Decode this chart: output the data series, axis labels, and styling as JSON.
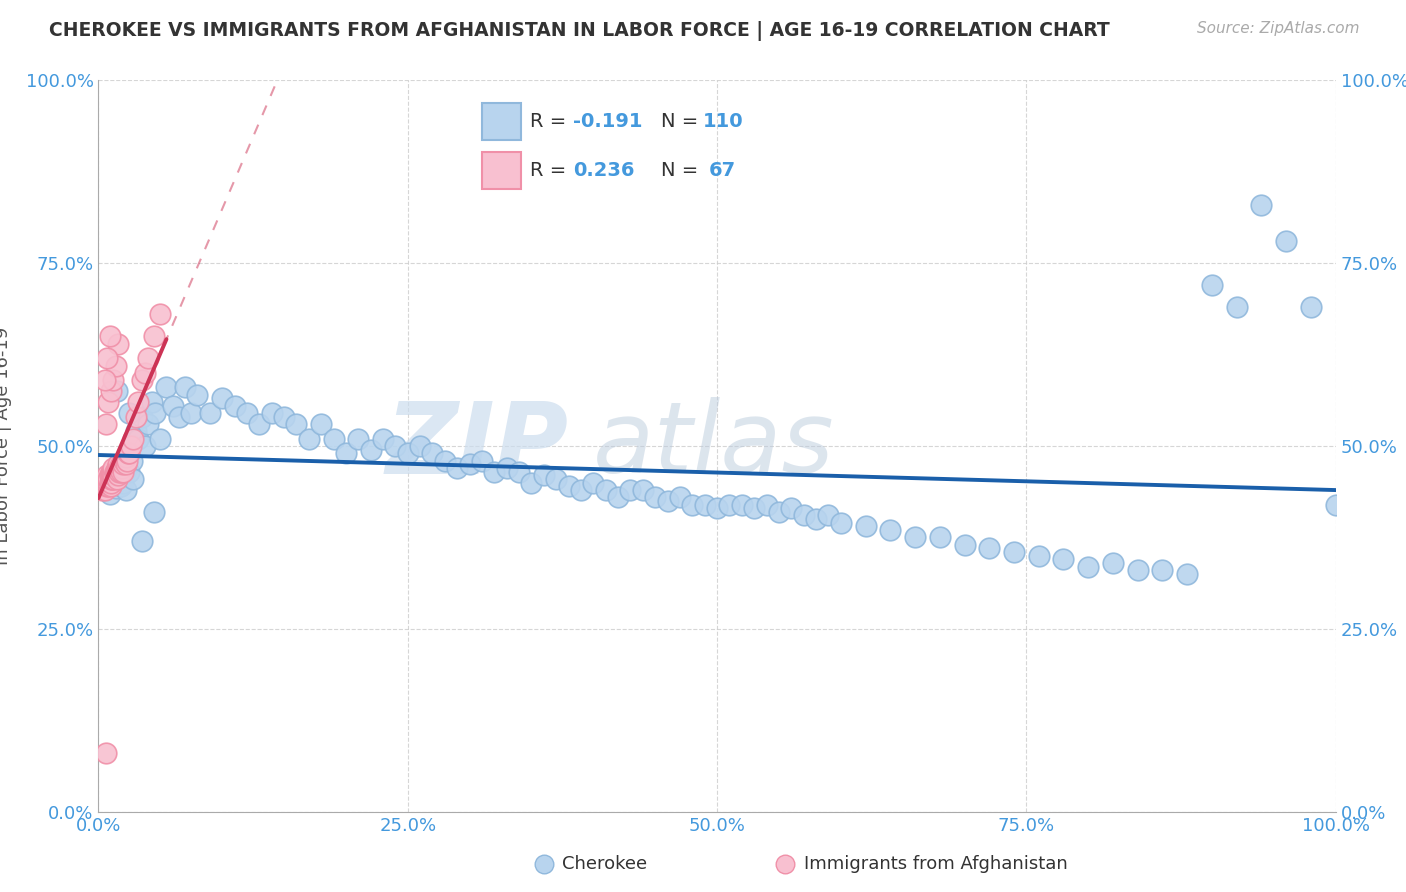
{
  "title": "CHEROKEE VS IMMIGRANTS FROM AFGHANISTAN IN LABOR FORCE | AGE 16-19 CORRELATION CHART",
  "source": "Source: ZipAtlas.com",
  "ylabel": "In Labor Force | Age 16-19",
  "xlim": [
    0,
    1
  ],
  "ylim": [
    0,
    1
  ],
  "xticks": [
    0.0,
    0.25,
    0.5,
    0.75,
    1.0
  ],
  "yticks": [
    0.0,
    0.25,
    0.5,
    0.75,
    1.0
  ],
  "xticklabels": [
    "0.0%",
    "25.0%",
    "50.0%",
    "75.0%",
    "100.0%"
  ],
  "yticklabels": [
    "0.0%",
    "25.0%",
    "50.0%",
    "75.0%",
    "100.0%"
  ],
  "watermark_zip": "ZIP",
  "watermark_atlas": "atlas",
  "group1_label": "Cherokee",
  "group2_label": "Immigrants from Afghanistan",
  "legend_r1": "-0.191",
  "legend_n1": "110",
  "legend_r2": "0.236",
  "legend_n2": "67",
  "group1_color": "#b8d4ee",
  "group1_edge": "#90b8dc",
  "group2_color": "#f8c0d0",
  "group2_edge": "#f090a8",
  "line1_color": "#1a5faa",
  "line2_color": "#cc3355",
  "background_color": "#ffffff",
  "grid_color": "#cccccc",
  "title_color": "#333333",
  "tick_color": "#4499dd",
  "legend_label_color": "#333333",
  "legend_val_color": "#4499dd",
  "group1_x": [
    0.005,
    0.007,
    0.008,
    0.009,
    0.01,
    0.012,
    0.013,
    0.014,
    0.015,
    0.016,
    0.017,
    0.018,
    0.019,
    0.02,
    0.021,
    0.022,
    0.023,
    0.025,
    0.027,
    0.028,
    0.03,
    0.032,
    0.035,
    0.038,
    0.04,
    0.043,
    0.046,
    0.05,
    0.055,
    0.06,
    0.065,
    0.07,
    0.075,
    0.08,
    0.09,
    0.1,
    0.11,
    0.12,
    0.13,
    0.14,
    0.15,
    0.16,
    0.17,
    0.18,
    0.19,
    0.2,
    0.21,
    0.22,
    0.23,
    0.24,
    0.25,
    0.26,
    0.27,
    0.28,
    0.29,
    0.3,
    0.31,
    0.32,
    0.33,
    0.34,
    0.35,
    0.36,
    0.37,
    0.38,
    0.39,
    0.4,
    0.41,
    0.42,
    0.43,
    0.44,
    0.45,
    0.46,
    0.47,
    0.48,
    0.49,
    0.5,
    0.51,
    0.52,
    0.53,
    0.54,
    0.55,
    0.56,
    0.57,
    0.58,
    0.59,
    0.6,
    0.62,
    0.64,
    0.66,
    0.68,
    0.7,
    0.72,
    0.74,
    0.76,
    0.78,
    0.8,
    0.82,
    0.84,
    0.86,
    0.88,
    0.9,
    0.92,
    0.94,
    0.96,
    0.98,
    1.0,
    0.015,
    0.025,
    0.035,
    0.045
  ],
  "group1_y": [
    0.44,
    0.45,
    0.445,
    0.435,
    0.46,
    0.455,
    0.448,
    0.442,
    0.465,
    0.47,
    0.458,
    0.445,
    0.455,
    0.45,
    0.46,
    0.44,
    0.47,
    0.465,
    0.48,
    0.455,
    0.52,
    0.51,
    0.54,
    0.5,
    0.53,
    0.56,
    0.545,
    0.51,
    0.58,
    0.555,
    0.54,
    0.58,
    0.545,
    0.57,
    0.545,
    0.565,
    0.555,
    0.545,
    0.53,
    0.545,
    0.54,
    0.53,
    0.51,
    0.53,
    0.51,
    0.49,
    0.51,
    0.495,
    0.51,
    0.5,
    0.49,
    0.5,
    0.49,
    0.48,
    0.47,
    0.475,
    0.48,
    0.465,
    0.47,
    0.465,
    0.45,
    0.46,
    0.455,
    0.445,
    0.44,
    0.45,
    0.44,
    0.43,
    0.44,
    0.44,
    0.43,
    0.425,
    0.43,
    0.42,
    0.42,
    0.415,
    0.42,
    0.42,
    0.415,
    0.42,
    0.41,
    0.415,
    0.405,
    0.4,
    0.405,
    0.395,
    0.39,
    0.385,
    0.375,
    0.375,
    0.365,
    0.36,
    0.355,
    0.35,
    0.345,
    0.335,
    0.34,
    0.33,
    0.33,
    0.325,
    0.72,
    0.69,
    0.83,
    0.78,
    0.69,
    0.42,
    0.575,
    0.545,
    0.37,
    0.41
  ],
  "group2_x": [
    0.003,
    0.004,
    0.005,
    0.005,
    0.006,
    0.006,
    0.007,
    0.007,
    0.007,
    0.008,
    0.008,
    0.008,
    0.009,
    0.009,
    0.01,
    0.01,
    0.01,
    0.01,
    0.011,
    0.011,
    0.011,
    0.012,
    0.012,
    0.012,
    0.013,
    0.013,
    0.014,
    0.014,
    0.015,
    0.015,
    0.015,
    0.016,
    0.016,
    0.016,
    0.017,
    0.017,
    0.018,
    0.018,
    0.019,
    0.019,
    0.02,
    0.02,
    0.021,
    0.022,
    0.022,
    0.023,
    0.024,
    0.025,
    0.026,
    0.028,
    0.03,
    0.032,
    0.035,
    0.038,
    0.04,
    0.045,
    0.05,
    0.006,
    0.008,
    0.01,
    0.012,
    0.014,
    0.016,
    0.005,
    0.007,
    0.009,
    0.006
  ],
  "group2_y": [
    0.44,
    0.445,
    0.45,
    0.44,
    0.448,
    0.455,
    0.445,
    0.45,
    0.46,
    0.445,
    0.45,
    0.455,
    0.45,
    0.46,
    0.445,
    0.45,
    0.455,
    0.465,
    0.455,
    0.46,
    0.465,
    0.455,
    0.46,
    0.47,
    0.46,
    0.465,
    0.46,
    0.465,
    0.455,
    0.465,
    0.47,
    0.46,
    0.47,
    0.475,
    0.465,
    0.47,
    0.465,
    0.475,
    0.47,
    0.475,
    0.465,
    0.475,
    0.48,
    0.475,
    0.485,
    0.48,
    0.49,
    0.49,
    0.5,
    0.51,
    0.54,
    0.56,
    0.59,
    0.6,
    0.62,
    0.65,
    0.68,
    0.53,
    0.56,
    0.575,
    0.59,
    0.61,
    0.64,
    0.59,
    0.62,
    0.65,
    0.08
  ]
}
